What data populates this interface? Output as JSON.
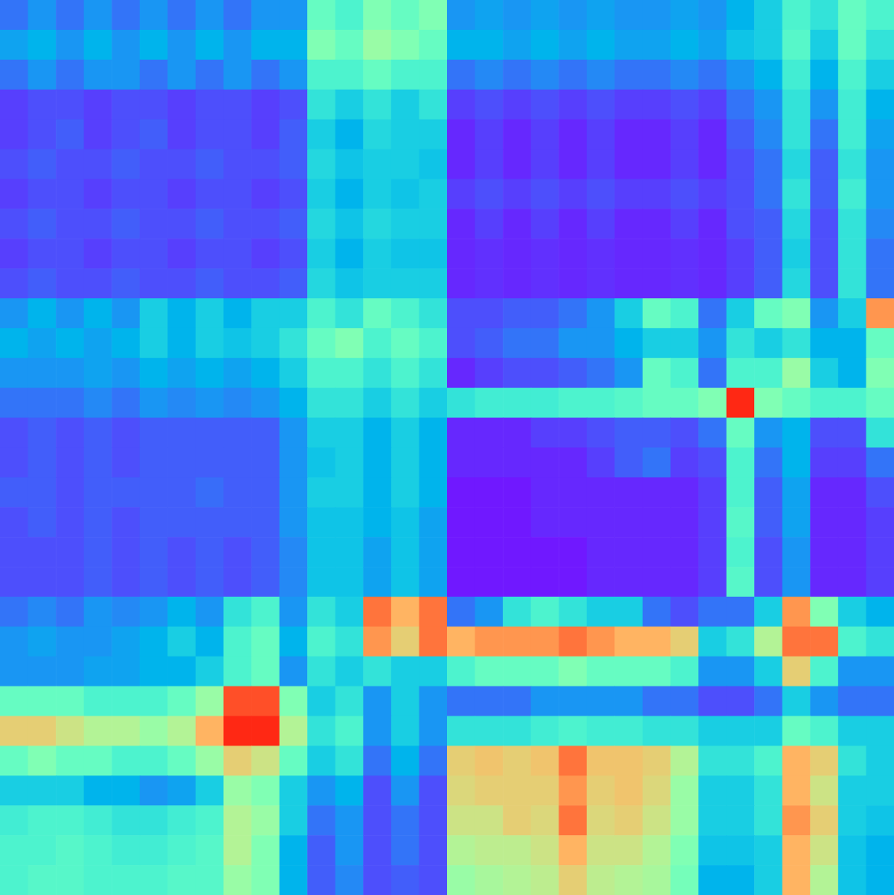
{
  "chart_data": [
    {
      "type": "heatmap",
      "tick_labels": false,
      "clim": [
        0,
        1
      ],
      "cells": [
        [
          0.15,
          0.2,
          0.15,
          0.2,
          0.15,
          0.2,
          0.15,
          0.2,
          0.15,
          0.2,
          0.2,
          0.45,
          0.4,
          0.5,
          0.45,
          0.5
        ],
        [
          0.22,
          0.25,
          0.2,
          0.25,
          0.2,
          0.25,
          0.2,
          0.25,
          0.2,
          0.25,
          0.25,
          0.5,
          0.45,
          0.55,
          0.5,
          0.45
        ],
        [
          0.15,
          0.2,
          0.15,
          0.2,
          0.2,
          0.15,
          0.2,
          0.15,
          0.2,
          0.15,
          0.2,
          0.4,
          0.4,
          0.45,
          0.4,
          0.4
        ],
        [
          0.08,
          0.1,
          0.1,
          0.08,
          0.1,
          0.1,
          0.08,
          0.1,
          0.1,
          0.08,
          0.1,
          0.35,
          0.3,
          0.35,
          0.3,
          0.35
        ],
        [
          0.08,
          0.1,
          0.12,
          0.08,
          0.1,
          0.12,
          0.08,
          0.1,
          0.1,
          0.08,
          0.12,
          0.3,
          0.25,
          0.32,
          0.3,
          0.3
        ],
        [
          0.1,
          0.12,
          0.1,
          0.1,
          0.12,
          0.1,
          0.1,
          0.12,
          0.1,
          0.1,
          0.12,
          0.32,
          0.28,
          0.3,
          0.3,
          0.28
        ],
        [
          0.08,
          0.1,
          0.1,
          0.08,
          0.1,
          0.1,
          0.08,
          0.1,
          0.1,
          0.08,
          0.1,
          0.3,
          0.25,
          0.3,
          0.28,
          0.3
        ],
        [
          0.1,
          0.12,
          0.1,
          0.1,
          0.12,
          0.1,
          0.1,
          0.12,
          0.1,
          0.1,
          0.12,
          0.32,
          0.28,
          0.32,
          0.3,
          0.3
        ],
        [
          0.08,
          0.1,
          0.1,
          0.08,
          0.1,
          0.1,
          0.08,
          0.1,
          0.1,
          0.08,
          0.1,
          0.3,
          0.25,
          0.3,
          0.28,
          0.28
        ],
        [
          0.1,
          0.12,
          0.1,
          0.1,
          0.12,
          0.1,
          0.1,
          0.12,
          0.1,
          0.1,
          0.12,
          0.32,
          0.28,
          0.3,
          0.3,
          0.3
        ]
      ]
    },
    {
      "type": "heatmap",
      "tick_labels": false,
      "clim": [
        0,
        1
      ],
      "cells": [
        [
          0.2,
          0.22,
          0.2,
          0.22,
          0.2,
          0.22,
          0.2,
          0.2,
          0.22,
          0.2,
          0.25,
          0.3,
          0.4,
          0.35,
          0.45,
          0.4
        ],
        [
          0.25,
          0.25,
          0.22,
          0.25,
          0.22,
          0.25,
          0.22,
          0.22,
          0.25,
          0.22,
          0.28,
          0.3,
          0.42,
          0.3,
          0.45,
          0.35
        ],
        [
          0.15,
          0.18,
          0.15,
          0.18,
          0.15,
          0.18,
          0.15,
          0.15,
          0.18,
          0.15,
          0.2,
          0.25,
          0.38,
          0.25,
          0.4,
          0.3
        ],
        [
          0.08,
          0.1,
          0.08,
          0.1,
          0.08,
          0.1,
          0.08,
          0.08,
          0.1,
          0.08,
          0.15,
          0.2,
          0.35,
          0.2,
          0.38,
          0.25
        ],
        [
          0.05,
          0.08,
          0.05,
          0.08,
          0.05,
          0.08,
          0.05,
          0.05,
          0.08,
          0.05,
          0.12,
          0.18,
          0.35,
          0.15,
          0.38,
          0.22
        ],
        [
          0.05,
          0.08,
          0.05,
          0.08,
          0.05,
          0.08,
          0.05,
          0.05,
          0.08,
          0.05,
          0.1,
          0.15,
          0.32,
          0.12,
          0.35,
          0.2
        ],
        [
          0.08,
          0.1,
          0.08,
          0.1,
          0.08,
          0.1,
          0.08,
          0.08,
          0.1,
          0.08,
          0.1,
          0.15,
          0.35,
          0.12,
          0.38,
          0.2
        ],
        [
          0.05,
          0.08,
          0.05,
          0.08,
          0.05,
          0.08,
          0.05,
          0.05,
          0.08,
          0.05,
          0.1,
          0.12,
          0.32,
          0.1,
          0.35,
          0.18
        ],
        [
          0.05,
          0.06,
          0.05,
          0.06,
          0.05,
          0.06,
          0.05,
          0.05,
          0.06,
          0.05,
          0.08,
          0.12,
          0.3,
          0.1,
          0.35,
          0.15
        ],
        [
          0.05,
          0.06,
          0.05,
          0.06,
          0.05,
          0.06,
          0.05,
          0.05,
          0.06,
          0.05,
          0.08,
          0.12,
          0.32,
          0.1,
          0.35,
          0.15
        ]
      ]
    },
    {
      "type": "heatmap",
      "tick_labels": false,
      "clim": [
        0,
        1
      ],
      "cells": [
        [
          0.2,
          0.25,
          0.2,
          0.25,
          0.2,
          0.3,
          0.25,
          0.3,
          0.25,
          0.3,
          0.3,
          0.4,
          0.35,
          0.45,
          0.4,
          0.35
        ],
        [
          0.25,
          0.22,
          0.25,
          0.22,
          0.25,
          0.3,
          0.25,
          0.3,
          0.28,
          0.3,
          0.35,
          0.45,
          0.5,
          0.4,
          0.45,
          0.4
        ],
        [
          0.2,
          0.2,
          0.2,
          0.22,
          0.2,
          0.25,
          0.22,
          0.25,
          0.22,
          0.25,
          0.3,
          0.4,
          0.4,
          0.35,
          0.4,
          0.35
        ],
        [
          0.15,
          0.15,
          0.15,
          0.18,
          0.15,
          0.2,
          0.18,
          0.2,
          0.18,
          0.2,
          0.25,
          0.35,
          0.35,
          0.3,
          0.35,
          0.3
        ],
        [
          0.1,
          0.12,
          0.1,
          0.12,
          0.1,
          0.12,
          0.12,
          0.12,
          0.12,
          0.12,
          0.2,
          0.3,
          0.3,
          0.25,
          0.3,
          0.25
        ],
        [
          0.1,
          0.12,
          0.1,
          0.12,
          0.1,
          0.12,
          0.12,
          0.12,
          0.12,
          0.12,
          0.2,
          0.28,
          0.3,
          0.25,
          0.3,
          0.25
        ],
        [
          0.12,
          0.12,
          0.1,
          0.12,
          0.12,
          0.12,
          0.12,
          0.14,
          0.12,
          0.12,
          0.2,
          0.3,
          0.3,
          0.25,
          0.3,
          0.25
        ],
        [
          0.1,
          0.12,
          0.1,
          0.12,
          0.1,
          0.12,
          0.12,
          0.12,
          0.12,
          0.12,
          0.2,
          0.28,
          0.28,
          0.25,
          0.28,
          0.22
        ],
        [
          0.1,
          0.1,
          0.1,
          0.12,
          0.1,
          0.12,
          0.1,
          0.12,
          0.1,
          0.12,
          0.18,
          0.28,
          0.28,
          0.22,
          0.28,
          0.22
        ],
        [
          0.1,
          0.1,
          0.1,
          0.12,
          0.1,
          0.12,
          0.1,
          0.12,
          0.1,
          0.12,
          0.18,
          0.28,
          0.28,
          0.22,
          0.28,
          0.22
        ]
      ]
    },
    {
      "type": "heatmap",
      "tick_labels": false,
      "clim": [
        0,
        1
      ],
      "cells": [
        [
          0.1,
          0.1,
          0.12,
          0.12,
          0.15,
          0.2,
          0.3,
          0.45,
          0.4,
          0.15,
          0.3,
          0.45,
          0.5,
          0.2,
          0.3,
          0.8
        ],
        [
          0.1,
          0.12,
          0.15,
          0.15,
          0.2,
          0.2,
          0.25,
          0.3,
          0.3,
          0.2,
          0.35,
          0.3,
          0.35,
          0.25,
          0.25,
          0.45
        ],
        [
          0.05,
          0.08,
          0.1,
          0.1,
          0.12,
          0.15,
          0.2,
          0.45,
          0.4,
          0.15,
          0.4,
          0.4,
          0.55,
          0.3,
          0.25,
          0.5
        ],
        [
          0.35,
          0.38,
          0.38,
          0.38,
          0.4,
          0.4,
          0.42,
          0.45,
          0.45,
          0.5,
          0.95,
          0.5,
          0.45,
          0.4,
          0.4,
          0.45
        ],
        [
          0.05,
          0.05,
          0.05,
          0.08,
          0.08,
          0.1,
          0.12,
          0.12,
          0.1,
          0.15,
          0.45,
          0.2,
          0.25,
          0.1,
          0.1,
          0.35
        ],
        [
          0.05,
          0.05,
          0.05,
          0.05,
          0.05,
          0.08,
          0.12,
          0.15,
          0.08,
          0.1,
          0.4,
          0.15,
          0.25,
          0.08,
          0.08,
          0.15
        ],
        [
          0.03,
          0.03,
          0.03,
          0.05,
          0.05,
          0.05,
          0.05,
          0.05,
          0.05,
          0.08,
          0.4,
          0.12,
          0.22,
          0.05,
          0.05,
          0.1
        ],
        [
          0.03,
          0.03,
          0.03,
          0.05,
          0.05,
          0.05,
          0.05,
          0.05,
          0.05,
          0.08,
          0.42,
          0.12,
          0.22,
          0.05,
          0.05,
          0.08
        ],
        [
          0.03,
          0.03,
          0.03,
          0.03,
          0.03,
          0.05,
          0.05,
          0.05,
          0.05,
          0.08,
          0.4,
          0.1,
          0.2,
          0.05,
          0.05,
          0.08
        ],
        [
          0.03,
          0.03,
          0.03,
          0.03,
          0.03,
          0.05,
          0.05,
          0.05,
          0.05,
          0.08,
          0.42,
          0.1,
          0.2,
          0.05,
          0.05,
          0.08
        ]
      ]
    },
    {
      "type": "heatmap",
      "tick_labels": false,
      "clim": [
        0,
        1
      ],
      "cells": [
        [
          0.15,
          0.18,
          0.15,
          0.2,
          0.18,
          0.2,
          0.25,
          0.2,
          0.35,
          0.4,
          0.2,
          0.35,
          0.3,
          0.85,
          0.75,
          0.85
        ],
        [
          0.2,
          0.22,
          0.2,
          0.2,
          0.22,
          0.25,
          0.3,
          0.25,
          0.4,
          0.45,
          0.25,
          0.4,
          0.35,
          0.8,
          0.7,
          0.85
        ],
        [
          0.2,
          0.2,
          0.2,
          0.22,
          0.22,
          0.25,
          0.25,
          0.3,
          0.4,
          0.45,
          0.2,
          0.35,
          0.3,
          0.35,
          0.3,
          0.3
        ],
        [
          0.45,
          0.45,
          0.45,
          0.4,
          0.4,
          0.4,
          0.45,
          0.55,
          0.9,
          0.9,
          0.5,
          0.3,
          0.35,
          0.2,
          0.3,
          0.2
        ],
        [
          0.7,
          0.7,
          0.65,
          0.6,
          0.6,
          0.55,
          0.6,
          0.75,
          0.95,
          0.95,
          0.6,
          0.35,
          0.4,
          0.2,
          0.3,
          0.2
        ],
        [
          0.45,
          0.5,
          0.45,
          0.45,
          0.4,
          0.4,
          0.45,
          0.55,
          0.7,
          0.65,
          0.45,
          0.3,
          0.35,
          0.15,
          0.25,
          0.15
        ],
        [
          0.3,
          0.3,
          0.3,
          0.25,
          0.25,
          0.2,
          0.22,
          0.3,
          0.55,
          0.5,
          0.3,
          0.2,
          0.25,
          0.1,
          0.2,
          0.1
        ],
        [
          0.38,
          0.4,
          0.4,
          0.38,
          0.35,
          0.35,
          0.38,
          0.4,
          0.6,
          0.55,
          0.3,
          0.15,
          0.2,
          0.1,
          0.15,
          0.1
        ],
        [
          0.4,
          0.4,
          0.42,
          0.4,
          0.38,
          0.38,
          0.4,
          0.42,
          0.6,
          0.5,
          0.25,
          0.12,
          0.2,
          0.1,
          0.15,
          0.1
        ],
        [
          0.4,
          0.42,
          0.42,
          0.4,
          0.4,
          0.4,
          0.42,
          0.42,
          0.55,
          0.5,
          0.25,
          0.12,
          0.18,
          0.1,
          0.12,
          0.1
        ]
      ]
    },
    {
      "type": "heatmap",
      "tick_labels": false,
      "clim": [
        0,
        1
      ],
      "cells": [
        [
          0.15,
          0.2,
          0.35,
          0.4,
          0.35,
          0.3,
          0.3,
          0.15,
          0.1,
          0.15,
          0.15,
          0.3,
          0.8,
          0.5,
          0.3,
          0.25
        ],
        [
          0.75,
          0.8,
          0.8,
          0.8,
          0.85,
          0.8,
          0.75,
          0.75,
          0.7,
          0.3,
          0.35,
          0.6,
          0.85,
          0.85,
          0.4,
          0.35
        ],
        [
          0.4,
          0.45,
          0.45,
          0.45,
          0.5,
          0.45,
          0.45,
          0.45,
          0.4,
          0.2,
          0.2,
          0.3,
          0.7,
          0.4,
          0.2,
          0.2
        ],
        [
          0.15,
          0.15,
          0.15,
          0.2,
          0.2,
          0.2,
          0.2,
          0.15,
          0.15,
          0.1,
          0.1,
          0.15,
          0.3,
          0.2,
          0.15,
          0.15
        ],
        [
          0.35,
          0.35,
          0.35,
          0.38,
          0.4,
          0.38,
          0.38,
          0.35,
          0.35,
          0.3,
          0.3,
          0.3,
          0.45,
          0.4,
          0.3,
          0.3
        ],
        [
          0.7,
          0.72,
          0.7,
          0.72,
          0.85,
          0.72,
          0.72,
          0.7,
          0.6,
          0.35,
          0.35,
          0.4,
          0.75,
          0.7,
          0.35,
          0.3
        ],
        [
          0.68,
          0.7,
          0.7,
          0.7,
          0.8,
          0.7,
          0.72,
          0.68,
          0.55,
          0.3,
          0.3,
          0.35,
          0.75,
          0.65,
          0.3,
          0.3
        ],
        [
          0.65,
          0.65,
          0.7,
          0.68,
          0.85,
          0.68,
          0.7,
          0.65,
          0.55,
          0.3,
          0.3,
          0.35,
          0.8,
          0.7,
          0.3,
          0.28
        ],
        [
          0.6,
          0.62,
          0.62,
          0.65,
          0.75,
          0.65,
          0.65,
          0.6,
          0.5,
          0.28,
          0.28,
          0.3,
          0.75,
          0.65,
          0.28,
          0.25
        ],
        [
          0.55,
          0.58,
          0.6,
          0.62,
          0.7,
          0.62,
          0.6,
          0.58,
          0.48,
          0.25,
          0.25,
          0.3,
          0.75,
          0.6,
          0.28,
          0.25
        ]
      ]
    }
  ]
}
